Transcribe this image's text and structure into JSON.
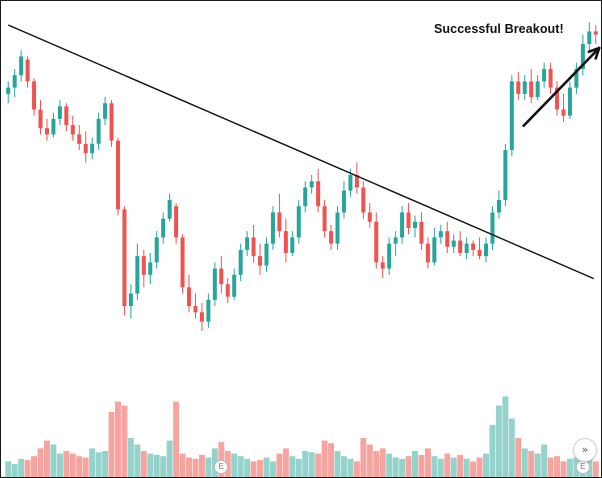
{
  "annotation": {
    "text": "Successful Breakout!"
  },
  "markers": {
    "earnings_1": "E",
    "earnings_2": "E"
  },
  "controls": {
    "scroll_icon": "»"
  },
  "colors": {
    "up": "#26a69a",
    "down": "#ef5350",
    "up_volume": "#95d2cb",
    "down_volume": "#f5a49f",
    "trendline": "#111111",
    "arrow": "#111111"
  },
  "chart_data": {
    "type": "candlestick",
    "title": "",
    "xlabel": "",
    "ylabel": "",
    "price_range": [
      0,
      100
    ],
    "volume_range": [
      0,
      100
    ],
    "axes_visible": false,
    "grid": false,
    "candles": [
      [
        76,
        80,
        73,
        78
      ],
      [
        78,
        84,
        75,
        82
      ],
      [
        82,
        90,
        80,
        88
      ],
      [
        87,
        88,
        78,
        80
      ],
      [
        80,
        81,
        69,
        71
      ],
      [
        71,
        74,
        63,
        65
      ],
      [
        65,
        68,
        61,
        63
      ],
      [
        63,
        70,
        62,
        68
      ],
      [
        68,
        74,
        66,
        72
      ],
      [
        72,
        73,
        64,
        66
      ],
      [
        66,
        69,
        61,
        63
      ],
      [
        63,
        66,
        58,
        60
      ],
      [
        60,
        64,
        54,
        57
      ],
      [
        57,
        62,
        55,
        60
      ],
      [
        60,
        70,
        58,
        68
      ],
      [
        68,
        75,
        66,
        73
      ],
      [
        73,
        74,
        59,
        61
      ],
      [
        61,
        62,
        37,
        39
      ],
      [
        39,
        40,
        5,
        8
      ],
      [
        8,
        15,
        4,
        12
      ],
      [
        12,
        28,
        10,
        24
      ],
      [
        24,
        26,
        14,
        18
      ],
      [
        18,
        25,
        15,
        22
      ],
      [
        22,
        32,
        20,
        30
      ],
      [
        30,
        38,
        28,
        36
      ],
      [
        36,
        44,
        35,
        42
      ],
      [
        40,
        41,
        28,
        30
      ],
      [
        30,
        31,
        12,
        14
      ],
      [
        14,
        18,
        6,
        8
      ],
      [
        8,
        12,
        4,
        6
      ],
      [
        6,
        9,
        0,
        3
      ],
      [
        3,
        12,
        1,
        10
      ],
      [
        10,
        22,
        8,
        20
      ],
      [
        20,
        24,
        12,
        15
      ],
      [
        15,
        17,
        9,
        11
      ],
      [
        11,
        20,
        10,
        18
      ],
      [
        18,
        28,
        16,
        26
      ],
      [
        26,
        32,
        24,
        30
      ],
      [
        30,
        34,
        22,
        24
      ],
      [
        24,
        28,
        18,
        21
      ],
      [
        21,
        30,
        19,
        28
      ],
      [
        28,
        40,
        26,
        38
      ],
      [
        38,
        44,
        30,
        32
      ],
      [
        32,
        36,
        22,
        25
      ],
      [
        25,
        32,
        24,
        30
      ],
      [
        30,
        42,
        28,
        40
      ],
      [
        40,
        48,
        38,
        46
      ],
      [
        46,
        50,
        44,
        48
      ],
      [
        48,
        52,
        38,
        40
      ],
      [
        40,
        42,
        30,
        32
      ],
      [
        32,
        34,
        26,
        28
      ],
      [
        28,
        40,
        26,
        38
      ],
      [
        38,
        48,
        36,
        45
      ],
      [
        45,
        52,
        43,
        50
      ],
      [
        50,
        54,
        44,
        46
      ],
      [
        46,
        48,
        36,
        38
      ],
      [
        38,
        41,
        33,
        35
      ],
      [
        35,
        38,
        20,
        22
      ],
      [
        22,
        24,
        17,
        20
      ],
      [
        20,
        30,
        18,
        28
      ],
      [
        28,
        32,
        24,
        30
      ],
      [
        30,
        40,
        28,
        38
      ],
      [
        38,
        41,
        31,
        33
      ],
      [
        33,
        37,
        30,
        35
      ],
      [
        35,
        38,
        26,
        28
      ],
      [
        28,
        30,
        20,
        22
      ],
      [
        22,
        33,
        21,
        30
      ],
      [
        30,
        34,
        28,
        32
      ],
      [
        32,
        35,
        25,
        27
      ],
      [
        27,
        31,
        25,
        29
      ],
      [
        29,
        32,
        24,
        25
      ],
      [
        25,
        30,
        23,
        28
      ],
      [
        28,
        29,
        24,
        26
      ],
      [
        26,
        30,
        23,
        24
      ],
      [
        24,
        30,
        22,
        28
      ],
      [
        28,
        40,
        26,
        38
      ],
      [
        38,
        45,
        36,
        42
      ],
      [
        42,
        60,
        40,
        58
      ],
      [
        58,
        82,
        56,
        80
      ],
      [
        80,
        83,
        74,
        76
      ],
      [
        76,
        82,
        74,
        80
      ],
      [
        80,
        84,
        73,
        75
      ],
      [
        75,
        82,
        74,
        80
      ],
      [
        80,
        86,
        78,
        84
      ],
      [
        84,
        86,
        76,
        78
      ],
      [
        78,
        80,
        69,
        71
      ],
      [
        71,
        76,
        67,
        69
      ],
      [
        69,
        80,
        68,
        78
      ],
      [
        78,
        86,
        76,
        84
      ],
      [
        84,
        95,
        82,
        92
      ],
      [
        92,
        99,
        90,
        96
      ],
      [
        96,
        98,
        92,
        95
      ]
    ],
    "volume": [
      12,
      10,
      14,
      13,
      16,
      22,
      28,
      25,
      18,
      20,
      18,
      16,
      15,
      22,
      19,
      20,
      50,
      58,
      55,
      30,
      25,
      20,
      18,
      17,
      16,
      28,
      58,
      18,
      15,
      14,
      17,
      15,
      22,
      27,
      20,
      18,
      16,
      14,
      12,
      13,
      15,
      12,
      18,
      22,
      16,
      14,
      20,
      19,
      18,
      28,
      26,
      20,
      16,
      14,
      12,
      30,
      25,
      20,
      22,
      18,
      15,
      14,
      16,
      20,
      17,
      22,
      16,
      14,
      18,
      15,
      17,
      14,
      12,
      15,
      18,
      40,
      55,
      62,
      45,
      30,
      22,
      20,
      18,
      25,
      15,
      16,
      12,
      14,
      15,
      22,
      18,
      12
    ],
    "trendline": {
      "from": [
        0,
        100
      ],
      "to": [
        91,
        20
      ]
    },
    "annotation_arrow": {
      "from": [
        82,
        69
      ],
      "to": [
        92,
        100
      ],
      "label": "Successful Breakout!"
    },
    "earnings_markers": {
      "index": [
        33,
        89
      ],
      "label": "E"
    }
  }
}
